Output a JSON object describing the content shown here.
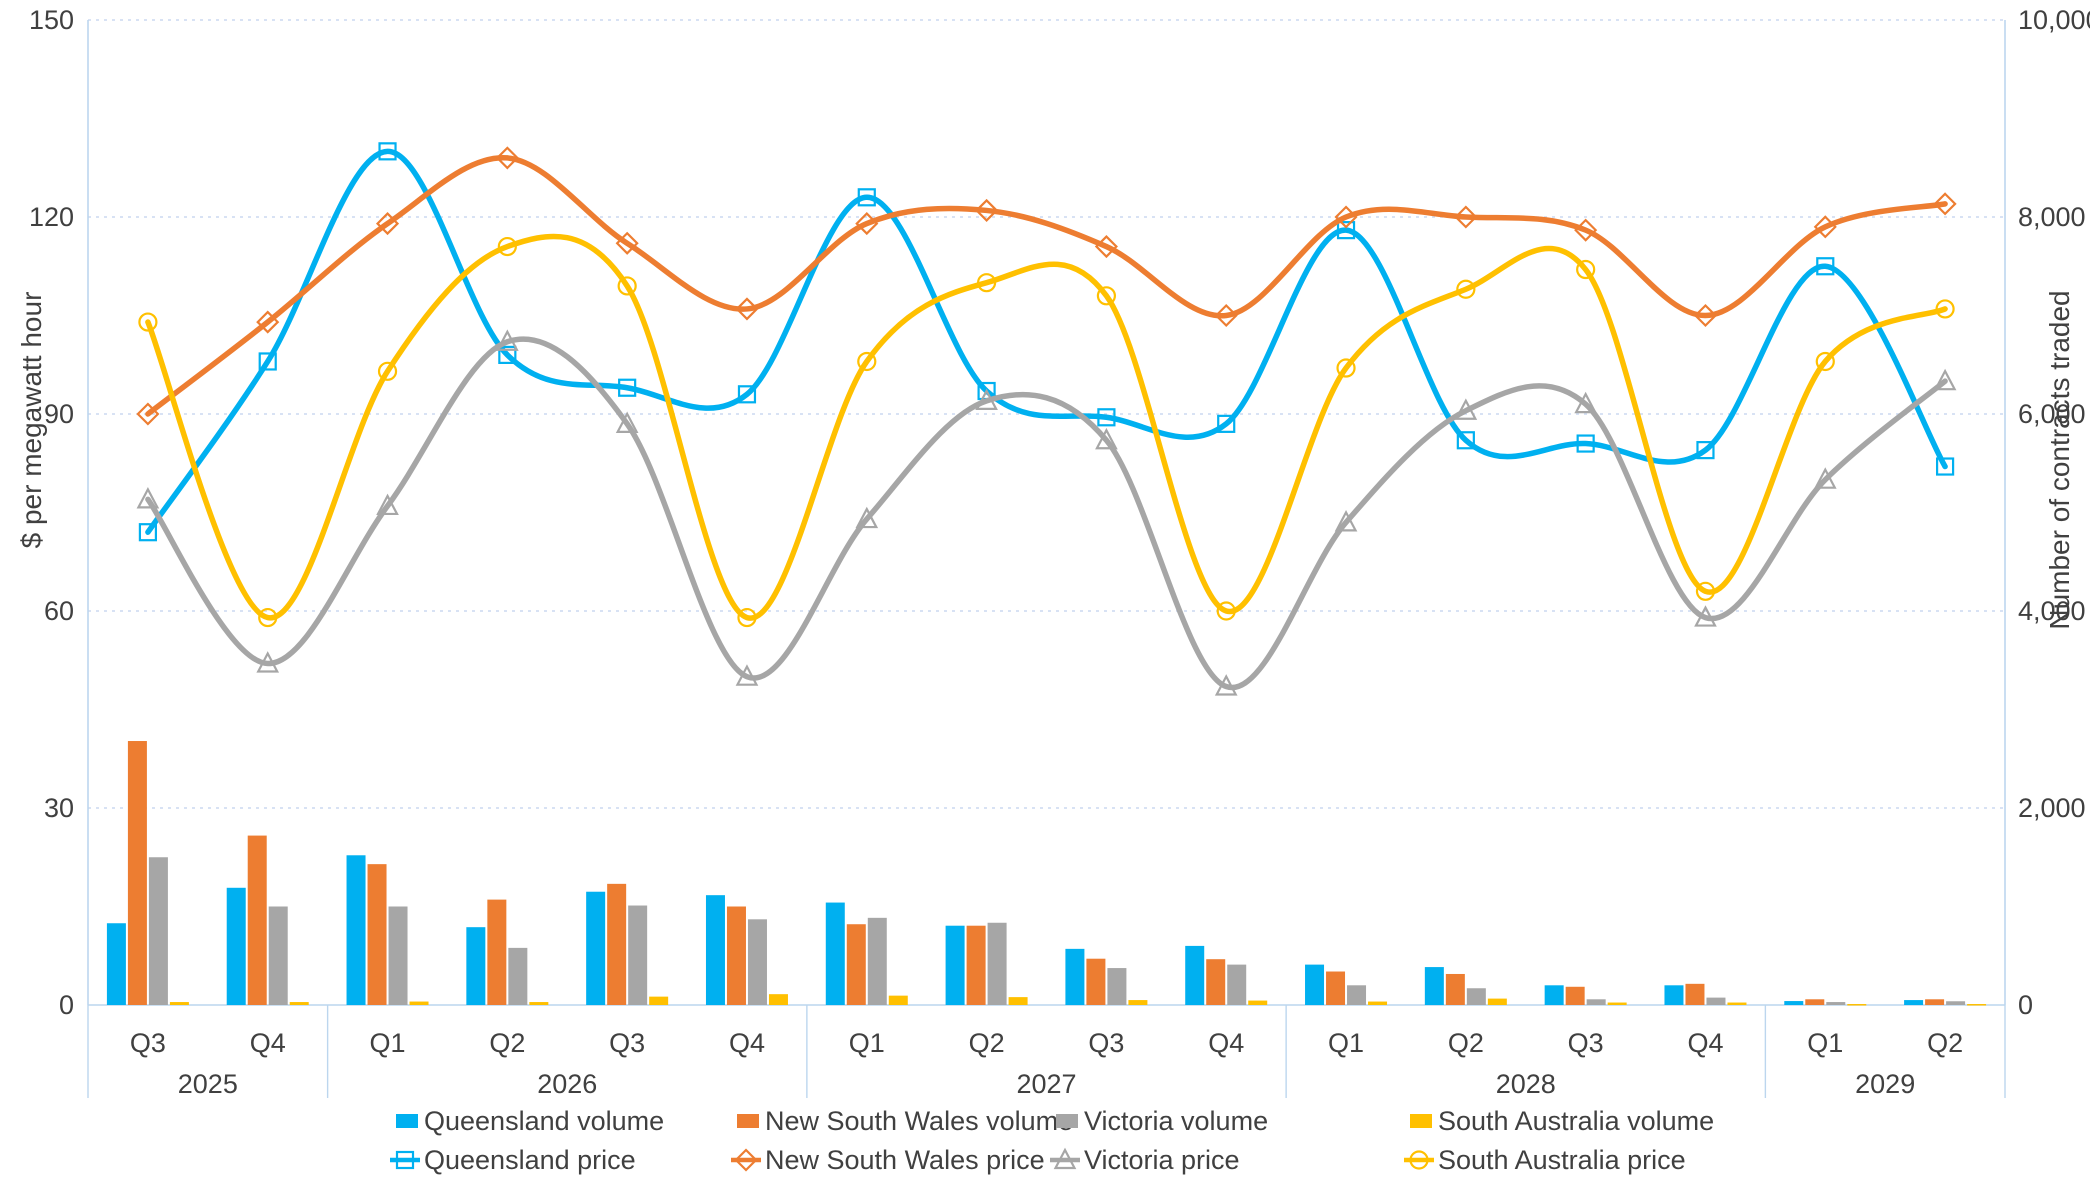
{
  "chart_data": {
    "type": "combo-bar-line",
    "title": "",
    "x_axis": {
      "quarters": [
        "Q3",
        "Q4",
        "Q1",
        "Q2",
        "Q3",
        "Q4",
        "Q1",
        "Q2",
        "Q3",
        "Q4",
        "Q1",
        "Q2",
        "Q3",
        "Q4",
        "Q1",
        "Q2"
      ],
      "year_groups": [
        {
          "label": "2025",
          "quarters": 2
        },
        {
          "label": "2026",
          "quarters": 4
        },
        {
          "label": "2027",
          "quarters": 4
        },
        {
          "label": "2028",
          "quarters": 4
        },
        {
          "label": "2029",
          "quarters": 2
        }
      ]
    },
    "left_axis": {
      "title": "$ per megawatt hour",
      "ticks": [
        0,
        30,
        60,
        90,
        120,
        150
      ],
      "tick_labels": [
        "0",
        "30",
        "60",
        "90",
        "120",
        "150"
      ],
      "min": 0,
      "max": 150
    },
    "right_axis": {
      "title": "Number of contracts traded",
      "ticks": [
        0,
        2000,
        4000,
        6000,
        8000,
        10000
      ],
      "tick_labels": [
        "0",
        "2,000",
        "4,000",
        "6,000",
        "8,000",
        "10,000"
      ],
      "min": 0,
      "max": 10000
    },
    "bar_series": [
      {
        "name": "Queensland volume",
        "color": "#00B0F0",
        "axis": "right",
        "values": [
          830,
          1190,
          1520,
          790,
          1150,
          1115,
          1040,
          805,
          570,
          600,
          410,
          385,
          200,
          200,
          40,
          50
        ]
      },
      {
        "name": "New South Wales volume",
        "color": "#ED7D31",
        "axis": "right",
        "values": [
          2680,
          1720,
          1430,
          1070,
          1230,
          1000,
          820,
          805,
          470,
          465,
          340,
          315,
          185,
          215,
          58,
          58
        ]
      },
      {
        "name": "Victoria volume",
        "color": "#A6A6A6",
        "axis": "right",
        "values": [
          1500,
          1000,
          1000,
          580,
          1010,
          870,
          885,
          835,
          375,
          410,
          200,
          170,
          58,
          75,
          30,
          38
        ]
      },
      {
        "name": "South Australia volume",
        "color": "#FFC000",
        "axis": "right",
        "values": [
          30,
          30,
          35,
          30,
          85,
          110,
          95,
          80,
          50,
          45,
          35,
          65,
          25,
          25,
          10,
          10
        ]
      }
    ],
    "line_series": [
      {
        "name": "Queensland price",
        "color": "#00B0F0",
        "marker": "square",
        "axis": "left",
        "values": [
          72,
          98,
          130,
          99,
          94,
          93,
          123,
          93.5,
          89.5,
          88.5,
          118,
          86,
          85.5,
          84.5,
          112.5,
          82
        ]
      },
      {
        "name": "New South Wales price",
        "color": "#ED7D31",
        "marker": "diamond",
        "axis": "left",
        "values": [
          90,
          104,
          119,
          129,
          116,
          106,
          119,
          121,
          115.5,
          105,
          120,
          120,
          118,
          105,
          118.5,
          122
        ]
      },
      {
        "name": "Victoria price",
        "color": "#A6A6A6",
        "marker": "triangle",
        "axis": "left",
        "values": [
          77,
          52,
          76,
          101,
          88.5,
          50,
          74,
          92,
          86,
          48.5,
          73.5,
          90.5,
          91.5,
          59,
          80,
          95
        ]
      },
      {
        "name": "South Australia price",
        "color": "#FFC000",
        "marker": "circle",
        "axis": "left",
        "values": [
          104,
          59,
          96.5,
          115.5,
          109.5,
          59,
          98,
          110,
          108,
          60,
          97,
          109,
          112,
          63,
          98,
          106
        ]
      }
    ],
    "legend": {
      "volume_labels": [
        "Queensland volume",
        "New South Wales volume",
        "Victoria volume",
        "South Australia volume"
      ],
      "price_labels": [
        "Queensland price",
        "New South Wales price",
        "Victoria price",
        "South Australia price"
      ]
    },
    "layout": {
      "grid": "on",
      "legend_position": "bottom"
    },
    "styles": {
      "grid_color": "#CCD9F1",
      "axis_line_color": "#BCD6EE",
      "text_color": "#404040",
      "background": "#FFFFFF"
    }
  }
}
